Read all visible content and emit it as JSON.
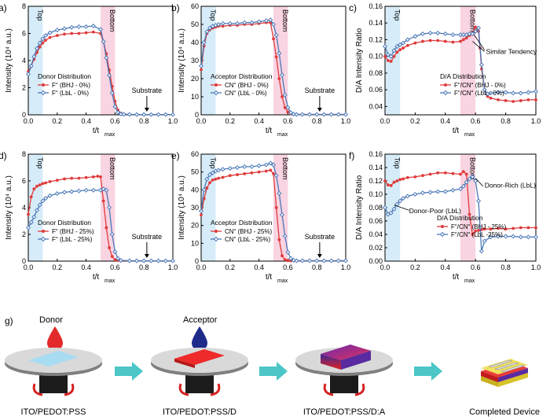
{
  "colors": {
    "red": "#e03a3a",
    "blue": "#4a78b8",
    "topShade": "#d6ecf8",
    "bottomShade": "#f9d4e2"
  },
  "chart_data": [
    {
      "panel": "a)",
      "type": "line",
      "xlabel": "t/t",
      "xlabel_sub": "max",
      "ylabel": "Intensity (10⁴ a.u.)",
      "xlim": [
        0,
        1.0
      ],
      "ylim": [
        0,
        8
      ],
      "yticks": [
        0,
        2,
        4,
        6,
        8
      ],
      "xticks": [
        0.0,
        0.2,
        0.4,
        0.6,
        0.8,
        1.0
      ],
      "regions": {
        "top": [
          0,
          0.1
        ],
        "bottom": [
          0.5,
          0.6
        ]
      },
      "legend_title": "Donor Distribution",
      "series": [
        {
          "name": "Fʺ (BHJ - 0%)",
          "color": "red",
          "x": [
            0,
            0.02,
            0.04,
            0.06,
            0.08,
            0.1,
            0.12,
            0.15,
            0.2,
            0.25,
            0.3,
            0.35,
            0.4,
            0.45,
            0.5,
            0.52,
            0.54,
            0.56,
            0.58,
            0.6,
            0.62,
            0.64,
            0.66,
            0.7,
            0.75,
            0.8,
            0.85,
            0.9,
            0.95,
            1.0
          ],
          "y": [
            3.2,
            3.6,
            4.1,
            4.6,
            5.0,
            5.3,
            5.5,
            5.7,
            5.85,
            5.95,
            6.0,
            6.0,
            6.05,
            6.1,
            6.0,
            5.4,
            4.5,
            3.3,
            2.1,
            1.0,
            0.35,
            0.12,
            0.05,
            0.03,
            0.02,
            0.02,
            0.02,
            0.02,
            0.02,
            0.02
          ]
        },
        {
          "name": "Fʺ (LbL - 0%)",
          "color": "blue",
          "x": [
            0,
            0.02,
            0.04,
            0.06,
            0.08,
            0.1,
            0.12,
            0.15,
            0.2,
            0.25,
            0.3,
            0.35,
            0.4,
            0.45,
            0.5,
            0.52,
            0.54,
            0.56,
            0.58,
            0.6,
            0.62,
            0.64,
            0.66,
            0.7,
            0.75,
            0.8,
            0.85,
            0.9,
            0.95,
            1.0
          ],
          "y": [
            3.0,
            3.6,
            4.3,
            4.9,
            5.3,
            5.6,
            5.85,
            6.05,
            6.25,
            6.35,
            6.45,
            6.5,
            6.5,
            6.55,
            6.3,
            5.4,
            4.2,
            2.9,
            1.6,
            0.6,
            0.18,
            0.06,
            0.04,
            0.03,
            0.02,
            0.02,
            0.02,
            0.02,
            0.02,
            0.02
          ]
        }
      ],
      "annotation": "Substrate"
    },
    {
      "panel": "b)",
      "type": "line",
      "xlabel": "t/t",
      "xlabel_sub": "max",
      "ylabel": "Intensity (10⁴ a.u.)",
      "xlim": [
        0,
        1.0
      ],
      "ylim": [
        0,
        60
      ],
      "yticks": [
        0,
        10,
        20,
        30,
        40,
        50,
        60
      ],
      "xticks": [
        0.0,
        0.2,
        0.4,
        0.6,
        0.8,
        1.0
      ],
      "regions": {
        "top": [
          0,
          0.1
        ],
        "bottom": [
          0.5,
          0.6
        ]
      },
      "legend_title": "Acceptor Distribution",
      "series": [
        {
          "name": "CNʺ (BHJ - 0%)",
          "color": "red",
          "x": [
            0,
            0.02,
            0.04,
            0.06,
            0.08,
            0.1,
            0.12,
            0.15,
            0.2,
            0.25,
            0.3,
            0.35,
            0.4,
            0.45,
            0.48,
            0.5,
            0.52,
            0.54,
            0.56,
            0.58,
            0.6,
            0.62,
            0.64,
            0.66,
            0.7,
            0.75,
            0.8,
            0.85,
            0.9,
            0.95,
            1.0
          ],
          "y": [
            25,
            38,
            45,
            47,
            48,
            48.5,
            49,
            49,
            49.5,
            49.5,
            50,
            50,
            50.5,
            51,
            51,
            42,
            32,
            20,
            10,
            4,
            1.5,
            0.6,
            0.3,
            0.2,
            0.2,
            0.2,
            0.2,
            0.2,
            0.2,
            0.2,
            0.2
          ]
        },
        {
          "name": "CNʺ (LbL - 0%)",
          "color": "blue",
          "x": [
            0,
            0.02,
            0.04,
            0.06,
            0.08,
            0.1,
            0.12,
            0.15,
            0.2,
            0.25,
            0.3,
            0.35,
            0.4,
            0.45,
            0.48,
            0.5,
            0.52,
            0.54,
            0.56,
            0.58,
            0.6,
            0.62,
            0.64,
            0.66,
            0.7,
            0.75,
            0.8,
            0.85,
            0.9,
            0.95,
            1.0
          ],
          "y": [
            27,
            40,
            46,
            48,
            49,
            49.5,
            50,
            50.5,
            50.5,
            50.5,
            51,
            51,
            51.5,
            52,
            52.5,
            50,
            44,
            34,
            22,
            11,
            4,
            1.2,
            0.4,
            0.2,
            0.2,
            0.2,
            0.2,
            0.2,
            0.2,
            0.2,
            0.2
          ]
        }
      ],
      "annotation": "Substrate"
    },
    {
      "panel": "c)",
      "type": "line",
      "xlabel": "t/t",
      "xlabel_sub": "max",
      "ylabel": "D/A Intensity Ratio",
      "xlim": [
        0,
        1.0
      ],
      "ylim": [
        0.03,
        0.16
      ],
      "yticks": [
        0.04,
        0.06,
        0.08,
        0.1,
        0.12,
        0.14,
        0.16
      ],
      "xticks": [
        0.0,
        0.2,
        0.4,
        0.6,
        0.8,
        1.0
      ],
      "regions": {
        "top": [
          0,
          0.1
        ],
        "bottom": [
          0.5,
          0.6
        ]
      },
      "legend_title": "D/A Distribution",
      "series": [
        {
          "name": "Fʺ/CNʺ (BHJ - 0%)",
          "color": "red",
          "x": [
            0,
            0.02,
            0.04,
            0.06,
            0.08,
            0.1,
            0.12,
            0.15,
            0.2,
            0.25,
            0.3,
            0.35,
            0.4,
            0.45,
            0.5,
            0.52,
            0.54,
            0.56,
            0.58,
            0.6,
            0.62,
            0.63,
            0.64,
            0.66,
            0.68,
            0.7,
            0.75,
            0.8,
            0.85,
            0.9,
            0.95,
            1.0
          ],
          "y": [
            0.1,
            0.095,
            0.094,
            0.1,
            0.105,
            0.108,
            0.11,
            0.113,
            0.116,
            0.118,
            0.119,
            0.119,
            0.118,
            0.117,
            0.118,
            0.12,
            0.122,
            0.125,
            0.128,
            0.135,
            0.13,
            0.11,
            0.085,
            0.06,
            0.052,
            0.05,
            0.048,
            0.047,
            0.046,
            0.047,
            0.048,
            0.048
          ]
        },
        {
          "name": "Fʺ/CNʺ (LbL - 0%)",
          "color": "blue",
          "x": [
            0,
            0.02,
            0.04,
            0.06,
            0.08,
            0.1,
            0.12,
            0.15,
            0.2,
            0.25,
            0.3,
            0.35,
            0.4,
            0.45,
            0.5,
            0.52,
            0.54,
            0.56,
            0.58,
            0.6,
            0.62,
            0.64,
            0.66,
            0.68,
            0.7,
            0.75,
            0.8,
            0.85,
            0.9,
            0.95,
            1.0
          ],
          "y": [
            0.112,
            0.102,
            0.1,
            0.107,
            0.112,
            0.114,
            0.116,
            0.12,
            0.124,
            0.127,
            0.128,
            0.128,
            0.127,
            0.126,
            0.126,
            0.126,
            0.126,
            0.127,
            0.127,
            0.13,
            0.134,
            0.09,
            0.06,
            0.055,
            0.056,
            0.057,
            0.057,
            0.056,
            0.056,
            0.057,
            0.058
          ]
        }
      ],
      "annotation": "Similar Tendency"
    },
    {
      "panel": "d)",
      "type": "line",
      "xlabel": "t/t",
      "xlabel_sub": "max",
      "ylabel": "Intensity (10⁴ a.u.)",
      "xlim": [
        0,
        1.0
      ],
      "ylim": [
        0,
        8
      ],
      "yticks": [
        0,
        2,
        4,
        6,
        8
      ],
      "xticks": [
        0.0,
        0.2,
        0.4,
        0.6,
        0.8,
        1.0
      ],
      "regions": {
        "top": [
          0,
          0.1
        ],
        "bottom": [
          0.5,
          0.6
        ]
      },
      "legend_title": "Donor Distribution",
      "series": [
        {
          "name": "Fʺ (BHJ - 25%)",
          "color": "red",
          "x": [
            0,
            0.02,
            0.04,
            0.06,
            0.08,
            0.1,
            0.12,
            0.15,
            0.2,
            0.25,
            0.3,
            0.35,
            0.4,
            0.45,
            0.48,
            0.5,
            0.52,
            0.54,
            0.56,
            0.58,
            0.6,
            0.62,
            0.64,
            0.7,
            0.75,
            0.8,
            0.85,
            0.9,
            0.95,
            1.0
          ],
          "y": [
            3.5,
            4.8,
            5.4,
            5.6,
            5.7,
            5.8,
            5.85,
            5.95,
            6.05,
            6.15,
            6.2,
            6.2,
            6.25,
            6.3,
            6.35,
            6.3,
            4.5,
            2.5,
            1.0,
            0.35,
            0.1,
            0.05,
            0.03,
            0.02,
            0.02,
            0.02,
            0.02,
            0.02,
            0.02,
            0.02
          ]
        },
        {
          "name": "Fʺ (LbL - 25%)",
          "color": "blue",
          "x": [
            0,
            0.02,
            0.04,
            0.06,
            0.08,
            0.1,
            0.12,
            0.15,
            0.2,
            0.25,
            0.3,
            0.35,
            0.4,
            0.45,
            0.5,
            0.52,
            0.54,
            0.56,
            0.58,
            0.6,
            0.62,
            0.64,
            0.7,
            0.75,
            0.8,
            0.85,
            0.9,
            0.95,
            1.0
          ],
          "y": [
            2.5,
            2.9,
            3.3,
            3.8,
            4.2,
            4.5,
            4.7,
            4.9,
            5.05,
            5.15,
            5.2,
            5.25,
            5.3,
            5.3,
            5.3,
            5.4,
            5.3,
            4.0,
            2.0,
            0.7,
            0.2,
            0.06,
            0.03,
            0.02,
            0.02,
            0.02,
            0.02,
            0.02,
            0.02
          ]
        }
      ],
      "annotation": "Substrate"
    },
    {
      "panel": "e)",
      "type": "line",
      "xlabel": "t/t",
      "xlabel_sub": "max",
      "ylabel": "Intensity (10⁴ a.u.)",
      "xlim": [
        0,
        1.0
      ],
      "ylim": [
        0,
        60
      ],
      "yticks": [
        0,
        10,
        20,
        30,
        40,
        50,
        60
      ],
      "xticks": [
        0.0,
        0.2,
        0.4,
        0.6,
        0.8,
        1.0
      ],
      "regions": {
        "top": [
          0,
          0.1
        ],
        "bottom": [
          0.5,
          0.6
        ]
      },
      "legend_title": "Acceptor Distribution",
      "series": [
        {
          "name": "CNʺ (BHJ - 25%)",
          "color": "red",
          "x": [
            0,
            0.02,
            0.04,
            0.06,
            0.08,
            0.1,
            0.12,
            0.15,
            0.2,
            0.25,
            0.3,
            0.35,
            0.4,
            0.45,
            0.48,
            0.5,
            0.52,
            0.54,
            0.56,
            0.58,
            0.6,
            0.62,
            0.64,
            0.7,
            0.75,
            0.8,
            0.85,
            0.9,
            0.95,
            1.0
          ],
          "y": [
            26,
            35,
            41,
            44,
            45.5,
            46,
            46.5,
            47,
            48,
            48.5,
            49,
            49.5,
            50,
            50.5,
            51,
            49,
            30,
            12,
            3,
            0.8,
            0.3,
            0.2,
            0.2,
            0.2,
            0.2,
            0.2,
            0.2,
            0.2,
            0.2,
            0.2
          ]
        },
        {
          "name": "CNʺ (LbL - 25%)",
          "color": "blue",
          "x": [
            0,
            0.02,
            0.04,
            0.06,
            0.08,
            0.1,
            0.12,
            0.15,
            0.2,
            0.25,
            0.3,
            0.35,
            0.4,
            0.45,
            0.48,
            0.5,
            0.52,
            0.54,
            0.56,
            0.58,
            0.6,
            0.62,
            0.64,
            0.66,
            0.7,
            0.75,
            0.8,
            0.85,
            0.9,
            0.95,
            1.0
          ],
          "y": [
            28,
            40,
            46,
            48.5,
            49.5,
            50.5,
            51,
            51.5,
            52,
            52.5,
            53,
            53,
            53.5,
            54,
            55,
            54,
            48,
            38,
            26,
            14,
            5,
            1.5,
            0.5,
            0.2,
            0.2,
            0.2,
            0.2,
            0.2,
            0.2,
            0.2,
            0.2
          ]
        }
      ],
      "annotation": "Substrate"
    },
    {
      "panel": "f)",
      "type": "line",
      "xlabel": "t/t",
      "xlabel_sub": "max",
      "ylabel": "D/A Intensity Ratio",
      "xlim": [
        0,
        1.0
      ],
      "ylim": [
        0,
        0.16
      ],
      "yticks": [
        0.0,
        0.02,
        0.04,
        0.06,
        0.08,
        0.1,
        0.12,
        0.14,
        0.16
      ],
      "xticks": [
        0.0,
        0.2,
        0.4,
        0.6,
        0.8,
        1.0
      ],
      "regions": {
        "top": [
          0,
          0.1
        ],
        "bottom": [
          0.5,
          0.6
        ]
      },
      "legend_title": "D/A Distribution",
      "series": [
        {
          "name": "Fʺ/CNʺ (BHJ - 25%)",
          "color": "red",
          "x": [
            0,
            0.02,
            0.04,
            0.06,
            0.08,
            0.1,
            0.12,
            0.15,
            0.2,
            0.25,
            0.3,
            0.35,
            0.4,
            0.45,
            0.5,
            0.52,
            0.54,
            0.56,
            0.58,
            0.6,
            0.62,
            0.64,
            0.66,
            0.7,
            0.75,
            0.8,
            0.85,
            0.9,
            0.95,
            1.0
          ],
          "y": [
            0.12,
            0.114,
            0.113,
            0.118,
            0.12,
            0.122,
            0.123,
            0.125,
            0.126,
            0.128,
            0.13,
            0.132,
            0.132,
            0.131,
            0.13,
            0.134,
            0.13,
            0.07,
            0.04,
            0.045,
            0.046,
            0.047,
            0.048,
            0.048,
            0.049,
            0.048,
            0.049,
            0.05,
            0.05,
            0.05
          ]
        },
        {
          "name": "Fʺ/CNʺ (LbL -25%)",
          "color": "blue",
          "x": [
            0,
            0.02,
            0.04,
            0.06,
            0.08,
            0.1,
            0.12,
            0.15,
            0.2,
            0.25,
            0.3,
            0.35,
            0.4,
            0.45,
            0.5,
            0.52,
            0.54,
            0.56,
            0.58,
            0.6,
            0.62,
            0.64,
            0.66,
            0.7,
            0.75,
            0.8,
            0.85,
            0.9,
            0.95,
            1.0
          ],
          "y": [
            0.08,
            0.07,
            0.072,
            0.078,
            0.085,
            0.09,
            0.094,
            0.097,
            0.1,
            0.102,
            0.103,
            0.104,
            0.104,
            0.106,
            0.108,
            0.112,
            0.118,
            0.123,
            0.126,
            0.12,
            0.09,
            0.015,
            0.03,
            0.036,
            0.037,
            0.037,
            0.037,
            0.036,
            0.036,
            0.036
          ]
        }
      ],
      "annotations": [
        "Donor-Rich (LbL)",
        "Donor-Poor (LbL)"
      ]
    }
  ],
  "labels": {
    "top": "Top",
    "bottom": "Bottom"
  },
  "process": {
    "panel": "g)",
    "donor_label": "Donor",
    "acceptor_label": "Acceptor",
    "steps": [
      "ITO/PEDOT:PSS",
      "ITO/PEDOT:PSS/D",
      "ITO/PEDOT:PSS/D:A",
      "Completed Device"
    ]
  }
}
